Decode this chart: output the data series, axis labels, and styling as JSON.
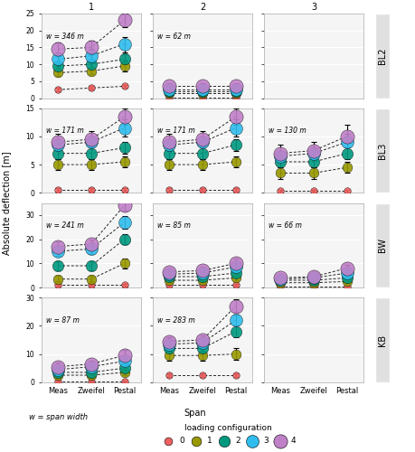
{
  "colors": {
    "0": "#FF6B6B",
    "1": "#8B8B00",
    "2": "#008B6B",
    "3": "#00BFFF",
    "4": "#CC88CC"
  },
  "color_values": [
    "#FF6B6B",
    "#999900",
    "#00897B",
    "#29B6F6",
    "#BA68C8"
  ],
  "x_labels": [
    "Meas",
    "Zweifel",
    "Pestal"
  ],
  "col_labels": [
    "1",
    "2",
    "3"
  ],
  "row_labels": [
    "BL2",
    "BL3",
    "BW",
    "KB"
  ],
  "cells": {
    "BL2_1": {
      "w": "w = 346 m",
      "ylim": [
        0,
        25
      ],
      "yticks": [
        0,
        5,
        10,
        15,
        20,
        25
      ],
      "data": {
        "Meas": {
          "0": [
            2.5,
            2.0,
            3.0
          ],
          "1": [
            7.5,
            6.5,
            8.5
          ],
          "2": [
            9.5,
            8.5,
            10.5
          ],
          "3": [
            11.5,
            9.5,
            13.5
          ],
          "4": [
            14.5,
            12.5,
            16.5
          ]
        },
        "Zweifel": {
          "0": [
            3.0,
            2.5,
            3.5
          ],
          "1": [
            8.0,
            7.0,
            9.0
          ],
          "2": [
            10.0,
            9.0,
            11.0
          ],
          "3": [
            12.5,
            10.5,
            14.5
          ],
          "4": [
            15.0,
            13.0,
            17.0
          ]
        },
        "Pestal": {
          "0": [
            3.5,
            3.0,
            4.0
          ],
          "1": [
            9.5,
            8.0,
            11.0
          ],
          "2": [
            11.5,
            10.0,
            13.0
          ],
          "3": [
            16.0,
            13.5,
            18.0
          ],
          "4": [
            23.0,
            21.0,
            25.0
          ]
        }
      }
    },
    "BL2_2": {
      "w": "w = 62 m",
      "ylim": [
        0,
        25
      ],
      "yticks": [
        0,
        5,
        10,
        15,
        20,
        25
      ],
      "data": {
        "Meas": {
          "0": [
            0.2,
            0.0,
            0.5
          ],
          "1": [
            1.5,
            1.0,
            2.0
          ],
          "2": [
            2.0,
            1.5,
            2.5
          ],
          "3": [
            2.5,
            2.0,
            3.0
          ],
          "4": [
            3.5,
            3.0,
            4.5
          ]
        },
        "Zweifel": {
          "0": [
            0.2,
            0.0,
            0.5
          ],
          "1": [
            1.5,
            1.0,
            2.0
          ],
          "2": [
            2.0,
            1.5,
            2.5
          ],
          "3": [
            2.5,
            2.0,
            3.0
          ],
          "4": [
            3.5,
            3.0,
            4.5
          ]
        },
        "Pestal": {
          "0": [
            0.2,
            0.0,
            0.5
          ],
          "1": [
            1.5,
            1.0,
            2.0
          ],
          "2": [
            2.0,
            1.5,
            2.5
          ],
          "3": [
            2.5,
            2.0,
            3.0
          ],
          "4": [
            3.5,
            3.0,
            4.5
          ]
        }
      }
    },
    "BL2_3": {
      "w": null,
      "ylim": [
        0,
        25
      ],
      "yticks": [
        0,
        5,
        10,
        15,
        20,
        25
      ],
      "data": null
    },
    "BL3_1": {
      "w": "w = 171 m",
      "ylim": [
        0,
        15
      ],
      "yticks": [
        0,
        5,
        10,
        15
      ],
      "data": {
        "Meas": {
          "0": [
            0.5,
            0.2,
            0.8
          ],
          "1": [
            5.0,
            4.0,
            6.0
          ],
          "2": [
            7.0,
            6.0,
            8.0
          ],
          "3": [
            8.5,
            7.5,
            9.5
          ],
          "4": [
            9.0,
            8.0,
            10.5
          ]
        },
        "Zweifel": {
          "0": [
            0.5,
            0.2,
            0.8
          ],
          "1": [
            5.0,
            4.0,
            6.0
          ],
          "2": [
            7.0,
            6.0,
            8.0
          ],
          "3": [
            9.0,
            8.0,
            10.0
          ],
          "4": [
            9.5,
            8.5,
            11.0
          ]
        },
        "Pestal": {
          "0": [
            0.5,
            0.2,
            0.8
          ],
          "1": [
            5.5,
            4.5,
            6.5
          ],
          "2": [
            8.0,
            7.0,
            9.0
          ],
          "3": [
            11.5,
            10.0,
            13.0
          ],
          "4": [
            13.5,
            12.0,
            15.0
          ]
        }
      }
    },
    "BL3_2": {
      "w": "w = 171 m",
      "ylim": [
        0,
        15
      ],
      "yticks": [
        0,
        5,
        10,
        15
      ],
      "data": {
        "Meas": {
          "0": [
            0.5,
            0.2,
            0.8
          ],
          "1": [
            5.0,
            4.0,
            6.0
          ],
          "2": [
            7.0,
            6.0,
            8.0
          ],
          "3": [
            8.5,
            7.5,
            9.5
          ],
          "4": [
            9.0,
            8.0,
            10.5
          ]
        },
        "Zweifel": {
          "0": [
            0.5,
            0.2,
            0.8
          ],
          "1": [
            5.0,
            4.0,
            6.0
          ],
          "2": [
            7.0,
            6.0,
            8.0
          ],
          "3": [
            9.0,
            8.0,
            10.0
          ],
          "4": [
            9.5,
            8.5,
            11.0
          ]
        },
        "Pestal": {
          "0": [
            0.5,
            0.2,
            0.8
          ],
          "1": [
            5.5,
            4.5,
            6.5
          ],
          "2": [
            8.5,
            7.5,
            9.5
          ],
          "3": [
            11.5,
            10.0,
            13.0
          ],
          "4": [
            13.5,
            12.0,
            15.0
          ]
        }
      }
    },
    "BL3_3": {
      "w": "w = 130 m",
      "ylim": [
        0,
        15
      ],
      "yticks": [
        0,
        5,
        10,
        15
      ],
      "data": {
        "Meas": {
          "0": [
            0.3,
            0.1,
            0.5
          ],
          "1": [
            3.5,
            2.5,
            4.5
          ],
          "2": [
            5.5,
            4.5,
            6.5
          ],
          "3": [
            6.5,
            5.5,
            7.5
          ],
          "4": [
            7.0,
            6.0,
            8.5
          ]
        },
        "Zweifel": {
          "0": [
            0.3,
            0.1,
            0.5
          ],
          "1": [
            3.5,
            2.5,
            4.5
          ],
          "2": [
            5.5,
            4.5,
            6.5
          ],
          "3": [
            7.0,
            6.0,
            8.0
          ],
          "4": [
            7.5,
            6.5,
            9.0
          ]
        },
        "Pestal": {
          "0": [
            0.3,
            0.1,
            0.5
          ],
          "1": [
            4.5,
            3.5,
            5.5
          ],
          "2": [
            7.0,
            6.0,
            8.0
          ],
          "3": [
            9.0,
            8.0,
            10.5
          ],
          "4": [
            10.0,
            9.0,
            12.0
          ]
        }
      }
    },
    "BW_1": {
      "w": "w = 241 m",
      "ylim": [
        0,
        35
      ],
      "yticks": [
        0,
        10,
        20,
        30
      ],
      "data": {
        "Meas": {
          "0": [
            1.0,
            0.5,
            1.5
          ],
          "1": [
            3.5,
            2.5,
            5.0
          ],
          "2": [
            9.0,
            7.0,
            11.0
          ],
          "3": [
            15.0,
            13.0,
            17.0
          ],
          "4": [
            17.0,
            15.0,
            19.0
          ]
        },
        "Zweifel": {
          "0": [
            1.0,
            0.5,
            1.5
          ],
          "1": [
            3.5,
            2.5,
            5.0
          ],
          "2": [
            9.0,
            7.0,
            11.0
          ],
          "3": [
            16.0,
            14.0,
            18.0
          ],
          "4": [
            18.0,
            16.0,
            20.0
          ]
        },
        "Pestal": {
          "0": [
            1.0,
            0.5,
            1.5
          ],
          "1": [
            10.0,
            8.0,
            12.0
          ],
          "2": [
            20.0,
            18.0,
            22.0
          ],
          "3": [
            27.0,
            24.5,
            29.5
          ],
          "4": [
            34.0,
            32.0,
            36.0
          ]
        }
      }
    },
    "BW_2": {
      "w": "w = 85 m",
      "ylim": [
        0,
        35
      ],
      "yticks": [
        0,
        10,
        20,
        30
      ],
      "data": {
        "Meas": {
          "0": [
            1.0,
            0.5,
            1.5
          ],
          "1": [
            3.0,
            2.0,
            4.0
          ],
          "2": [
            4.5,
            3.5,
            5.5
          ],
          "3": [
            5.5,
            4.5,
            6.5
          ],
          "4": [
            6.5,
            5.5,
            8.0
          ]
        },
        "Zweifel": {
          "0": [
            1.0,
            0.5,
            1.5
          ],
          "1": [
            3.0,
            2.0,
            4.0
          ],
          "2": [
            4.5,
            3.5,
            5.5
          ],
          "3": [
            6.0,
            5.0,
            7.0
          ],
          "4": [
            7.0,
            6.0,
            8.5
          ]
        },
        "Pestal": {
          "0": [
            1.0,
            0.5,
            1.5
          ],
          "1": [
            4.0,
            3.0,
            5.0
          ],
          "2": [
            6.0,
            5.0,
            7.0
          ],
          "3": [
            8.5,
            7.5,
            10.0
          ],
          "4": [
            10.0,
            9.0,
            12.0
          ]
        }
      }
    },
    "BW_3": {
      "w": "w = 66 m",
      "ylim": [
        0,
        35
      ],
      "yticks": [
        0,
        10,
        20,
        30
      ],
      "data": {
        "Meas": {
          "0": [
            0.5,
            0.2,
            0.8
          ],
          "1": [
            2.0,
            1.5,
            2.5
          ],
          "2": [
            3.0,
            2.5,
            3.5
          ],
          "3": [
            3.5,
            3.0,
            4.0
          ],
          "4": [
            4.0,
            3.5,
            5.0
          ]
        },
        "Zweifel": {
          "0": [
            0.5,
            0.2,
            0.8
          ],
          "1": [
            2.0,
            1.5,
            2.5
          ],
          "2": [
            3.0,
            2.5,
            3.5
          ],
          "3": [
            4.0,
            3.5,
            4.5
          ],
          "4": [
            4.5,
            4.0,
            5.5
          ]
        },
        "Pestal": {
          "0": [
            0.5,
            0.2,
            0.8
          ],
          "1": [
            2.5,
            2.0,
            3.0
          ],
          "2": [
            4.0,
            3.5,
            5.0
          ],
          "3": [
            6.0,
            5.0,
            7.5
          ],
          "4": [
            8.0,
            7.0,
            9.5
          ]
        }
      }
    },
    "KB_1": {
      "w": "w = 87 m",
      "ylim": [
        0,
        30
      ],
      "yticks": [
        0,
        10,
        20,
        30
      ],
      "data": {
        "Meas": {
          "0": [
            0.3,
            0.1,
            0.5
          ],
          "1": [
            2.5,
            1.5,
            3.5
          ],
          "2": [
            3.5,
            2.5,
            4.5
          ],
          "3": [
            4.5,
            3.5,
            5.5
          ],
          "4": [
            5.5,
            4.5,
            7.0
          ]
        },
        "Zweifel": {
          "0": [
            0.3,
            0.1,
            0.5
          ],
          "1": [
            2.5,
            1.5,
            3.5
          ],
          "2": [
            3.5,
            2.5,
            4.5
          ],
          "3": [
            5.5,
            4.5,
            6.5
          ],
          "4": [
            6.5,
            5.5,
            7.5
          ]
        },
        "Pestal": {
          "0": [
            0.3,
            0.1,
            0.5
          ],
          "1": [
            3.5,
            2.5,
            4.5
          ],
          "2": [
            5.0,
            4.0,
            6.5
          ],
          "3": [
            7.5,
            6.5,
            9.0
          ],
          "4": [
            9.5,
            8.5,
            11.5
          ]
        }
      }
    },
    "KB_2": {
      "w": "w = 283 m",
      "ylim": [
        0,
        30
      ],
      "yticks": [
        0,
        10,
        20,
        30
      ],
      "data": {
        "Meas": {
          "0": [
            2.5,
            2.0,
            3.0
          ],
          "1": [
            9.5,
            7.5,
            11.0
          ],
          "2": [
            12.0,
            10.5,
            13.5
          ],
          "3": [
            13.5,
            12.0,
            15.0
          ],
          "4": [
            14.5,
            13.0,
            16.0
          ]
        },
        "Zweifel": {
          "0": [
            2.5,
            2.0,
            3.0
          ],
          "1": [
            9.5,
            7.5,
            11.0
          ],
          "2": [
            12.0,
            10.5,
            13.5
          ],
          "3": [
            14.0,
            12.5,
            15.5
          ],
          "4": [
            15.0,
            13.5,
            16.5
          ]
        },
        "Pestal": {
          "0": [
            2.5,
            2.0,
            3.0
          ],
          "1": [
            10.0,
            8.0,
            12.0
          ],
          "2": [
            18.0,
            16.0,
            20.0
          ],
          "3": [
            22.0,
            20.0,
            24.0
          ],
          "4": [
            27.0,
            25.0,
            29.5
          ]
        }
      }
    },
    "KB_3": {
      "w": null,
      "ylim": [
        0,
        30
      ],
      "yticks": [
        0,
        10,
        20,
        30
      ],
      "data": null
    }
  }
}
